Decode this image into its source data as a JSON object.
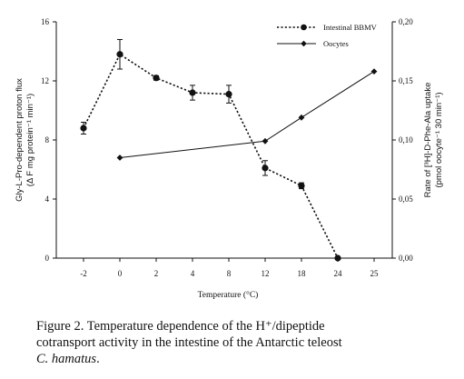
{
  "chart_data": {
    "type": "line",
    "categories": [
      "-2",
      "0",
      "2",
      "4",
      "8",
      "12",
      "18",
      "24",
      "25"
    ],
    "xlabel": "Temperature (°C)",
    "ylabel_left": "Gly-L-Pro-dependent proton flux (Δ F mg protein⁻¹ min⁻¹)",
    "ylabel_left_lines": [
      "Gly-L-Pro-dependent proton flux",
      "(Δ F mg protein⁻¹ min⁻¹)"
    ],
    "ylabel_right": "Rate of [³H]-D-Phe-Ala uptake (pmol oocyte⁻¹ 30 min⁻¹)",
    "ylabel_right_lines": [
      "Rate of [³H]-D-Phe-Ala uptake",
      "(pmol oocyte⁻¹ 30 min⁻¹)"
    ],
    "ylim_left": [
      0,
      16
    ],
    "yticks_left": [
      "0",
      "4",
      "8",
      "12",
      "16"
    ],
    "ylim_right": [
      0,
      0.2
    ],
    "yticks_right": [
      "0,00",
      "0,05",
      "0,10",
      "0,15",
      "0,20"
    ],
    "series": [
      {
        "name": "Intestinal BBMV",
        "axis": "left",
        "style": "dotted-circle",
        "x": [
          "-2",
          "0",
          "2",
          "4",
          "8",
          "12",
          "18",
          "24"
        ],
        "values": [
          8.8,
          13.8,
          12.2,
          11.2,
          11.1,
          6.1,
          4.9,
          0
        ],
        "error": [
          0.4,
          1.0,
          0.15,
          0.5,
          0.6,
          0.5,
          0.2,
          0
        ]
      },
      {
        "name": "Oocytes",
        "axis": "right",
        "style": "solid-diamond",
        "x": [
          "0",
          "12",
          "18",
          "25"
        ],
        "values": [
          0.085,
          0.099,
          0.119,
          0.158
        ]
      }
    ],
    "legend_position": "top-right",
    "grid": false,
    "colors": {
      "line": "#111111",
      "marker": "#111111"
    }
  },
  "caption": {
    "line1": "Figure 2. Temperature dependence of the H⁺/dipeptide",
    "line2": "cotransport activity in the intestine of the Antarctic teleost",
    "species": "C. hamatus",
    "end": "."
  }
}
